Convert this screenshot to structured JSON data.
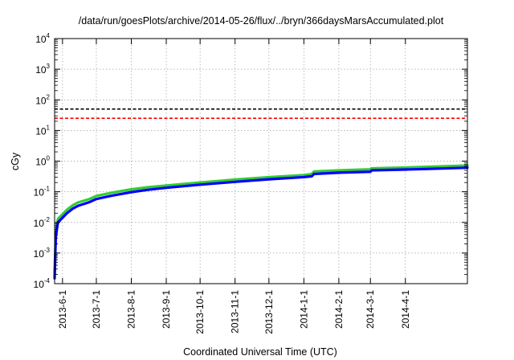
{
  "chart_data": {
    "type": "line",
    "title": "/data/run/goesPlots/archive/2014-05-26/flux/../bryn/366daysMarsAccumulated.plot",
    "xlabel": "Coordinated Universal Time (UTC)",
    "ylabel": "cGy",
    "y_scale": "log",
    "ylim": [
      0.0001,
      10000
    ],
    "xlim": [
      "2013-05-25",
      "2014-05-26"
    ],
    "grid": true,
    "legend": "none",
    "y_ticks": [
      {
        "base": "10",
        "exp": "-4",
        "value": 0.0001
      },
      {
        "base": "10",
        "exp": "-3",
        "value": 0.001
      },
      {
        "base": "10",
        "exp": "-2",
        "value": 0.01
      },
      {
        "base": "10",
        "exp": "-1",
        "value": 0.1
      },
      {
        "base": "10",
        "exp": "0",
        "value": 1
      },
      {
        "base": "10",
        "exp": "1",
        "value": 10
      },
      {
        "base": "10",
        "exp": "2",
        "value": 100
      },
      {
        "base": "10",
        "exp": "3",
        "value": 1000
      },
      {
        "base": "10",
        "exp": "4",
        "value": 10000
      }
    ],
    "x_ticks": [
      {
        "label": "2013-6-1",
        "date": "2013-06-01"
      },
      {
        "label": "2013-7-1",
        "date": "2013-07-01"
      },
      {
        "label": "2013-8-1",
        "date": "2013-08-01"
      },
      {
        "label": "2013-9-1",
        "date": "2013-09-01"
      },
      {
        "label": "2013-10-1",
        "date": "2013-10-01"
      },
      {
        "label": "2013-11-1",
        "date": "2013-11-01"
      },
      {
        "label": "2013-12-1",
        "date": "2013-12-01"
      },
      {
        "label": "2014-1-1",
        "date": "2014-01-01"
      },
      {
        "label": "2014-2-1",
        "date": "2014-02-01"
      },
      {
        "label": "2014-3-1",
        "date": "2014-03-01"
      },
      {
        "label": "2014-4-1",
        "date": "2014-04-01"
      }
    ],
    "reference_lines": [
      {
        "value": 50,
        "color": "#000000",
        "style": "dashed"
      },
      {
        "value": 25,
        "color": "#ff0000",
        "style": "dashed"
      }
    ],
    "series": [
      {
        "color": "#33cc33",
        "x": [
          "2013-05-25",
          "2013-05-26",
          "2013-05-27",
          "2013-05-28",
          "2013-05-31",
          "2013-06-05",
          "2013-06-10",
          "2013-06-15",
          "2013-06-25",
          "2013-07-01",
          "2013-07-15",
          "2013-08-01",
          "2013-08-15",
          "2013-09-01",
          "2013-10-01",
          "2013-11-01",
          "2013-12-01",
          "2014-01-01",
          "2014-01-08",
          "2014-01-10",
          "2014-02-01",
          "2014-03-01",
          "2014-03-02",
          "2014-04-01",
          "2014-05-01",
          "2014-05-26"
        ],
        "y": [
          0.0002,
          0.004,
          0.008,
          0.013,
          0.017,
          0.026,
          0.036,
          0.045,
          0.058,
          0.073,
          0.094,
          0.12,
          0.14,
          0.16,
          0.2,
          0.25,
          0.3,
          0.35,
          0.38,
          0.46,
          0.5,
          0.54,
          0.58,
          0.62,
          0.67,
          0.72
        ]
      },
      {
        "color": "#0000ff",
        "x": [
          "2013-05-25",
          "2013-05-26",
          "2013-05-27",
          "2013-05-28",
          "2013-05-31",
          "2013-06-05",
          "2013-06-10",
          "2013-06-15",
          "2013-06-25",
          "2013-07-01",
          "2013-07-15",
          "2013-08-01",
          "2013-08-15",
          "2013-09-01",
          "2013-10-01",
          "2013-11-01",
          "2013-12-01",
          "2014-01-01",
          "2014-01-08",
          "2014-01-10",
          "2014-02-01",
          "2014-03-01",
          "2014-03-02",
          "2014-04-01",
          "2014-05-01",
          "2014-05-26"
        ],
        "y": [
          0.00015,
          0.003,
          0.006,
          0.01,
          0.013,
          0.02,
          0.028,
          0.035,
          0.046,
          0.058,
          0.075,
          0.097,
          0.115,
          0.135,
          0.17,
          0.21,
          0.255,
          0.3,
          0.32,
          0.38,
          0.42,
          0.45,
          0.5,
          0.53,
          0.57,
          0.61
        ]
      }
    ]
  }
}
